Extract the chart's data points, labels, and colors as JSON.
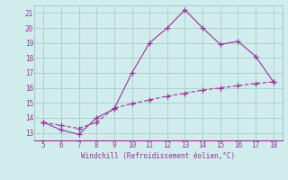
{
  "xlabel": "Windchill (Refroidissement éolien,°C)",
  "x_values": [
    5,
    6,
    7,
    8,
    9,
    10,
    11,
    12,
    13,
    14,
    15,
    16,
    17,
    18
  ],
  "line1_y": [
    13.7,
    13.2,
    12.9,
    14.0,
    14.6,
    17.0,
    19.0,
    20.0,
    21.2,
    20.0,
    18.9,
    19.1,
    18.1,
    16.4
  ],
  "line2_y": [
    13.7,
    13.5,
    13.3,
    13.7,
    14.65,
    14.95,
    15.2,
    15.45,
    15.65,
    15.85,
    16.0,
    16.15,
    16.3,
    16.4
  ],
  "line_color": "#993399",
  "bg_color": "#d0ecec",
  "grid_color": "#aacccc",
  "text_color": "#993399",
  "xlim": [
    4.5,
    18.5
  ],
  "ylim": [
    12.5,
    21.5
  ],
  "yticks": [
    13,
    14,
    15,
    16,
    17,
    18,
    19,
    20,
    21
  ],
  "xticks": [
    5,
    6,
    7,
    8,
    9,
    10,
    11,
    12,
    13,
    14,
    15,
    16,
    17,
    18
  ]
}
